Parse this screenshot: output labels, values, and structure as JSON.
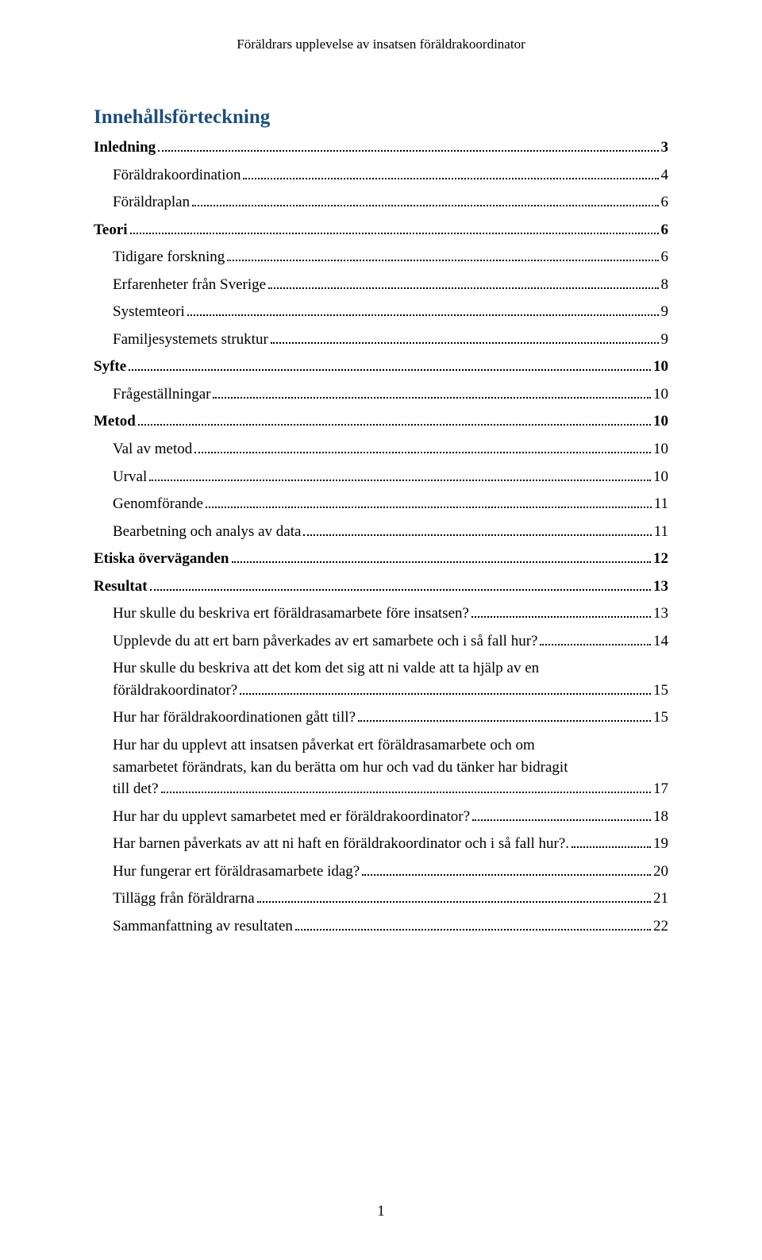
{
  "runningHeader": "Föräldrars upplevelse av insatsen föräldrakoordinator",
  "tocTitle": "Innehållsförteckning",
  "pageNumber": "1",
  "entries": [
    {
      "label": "Inledning",
      "page": "3",
      "bold": true,
      "indent": 0,
      "multiline": false
    },
    {
      "label": "Föräldrakoordination",
      "page": "4",
      "bold": false,
      "indent": 1,
      "multiline": false
    },
    {
      "label": "Föräldraplan",
      "page": "6",
      "bold": false,
      "indent": 1,
      "multiline": false
    },
    {
      "label": "Teori",
      "page": "6",
      "bold": true,
      "indent": 0,
      "multiline": false
    },
    {
      "label": "Tidigare forskning",
      "page": "6",
      "bold": false,
      "indent": 1,
      "multiline": false
    },
    {
      "label": "Erfarenheter från Sverige",
      "page": "8",
      "bold": false,
      "indent": 1,
      "multiline": false
    },
    {
      "label": "Systemteori",
      "page": "9",
      "bold": false,
      "indent": 1,
      "multiline": false
    },
    {
      "label": "Familjesystemets struktur",
      "page": "9",
      "bold": false,
      "indent": 1,
      "multiline": false
    },
    {
      "label": "Syfte",
      "page": "10",
      "bold": true,
      "indent": 0,
      "multiline": false
    },
    {
      "label": "Frågeställningar",
      "page": "10",
      "bold": false,
      "indent": 1,
      "multiline": false
    },
    {
      "label": "Metod",
      "page": "10",
      "bold": true,
      "indent": 0,
      "multiline": false
    },
    {
      "label": "Val av metod",
      "page": "10",
      "bold": false,
      "indent": 1,
      "multiline": false
    },
    {
      "label": "Urval",
      "page": "10",
      "bold": false,
      "indent": 1,
      "multiline": false
    },
    {
      "label": "Genomförande",
      "page": "11",
      "bold": false,
      "indent": 1,
      "multiline": false
    },
    {
      "label": "Bearbetning och analys av data",
      "page": "11",
      "bold": false,
      "indent": 1,
      "multiline": false
    },
    {
      "label": "Etiska överväganden",
      "page": "12",
      "bold": true,
      "indent": 0,
      "multiline": false
    },
    {
      "label": "Resultat",
      "page": "13",
      "bold": true,
      "indent": 0,
      "multiline": false
    },
    {
      "label": "Hur skulle du beskriva ert föräldrasamarbete före insatsen?",
      "page": "13",
      "bold": false,
      "indent": 1,
      "multiline": false
    },
    {
      "label": "Upplevde du att ert barn påverkades av ert samarbete och i så fall hur?",
      "page": "14",
      "bold": false,
      "indent": 1,
      "multiline": false
    },
    {
      "lines": [
        "Hur skulle du beskriva att det kom det sig att ni valde att ta hjälp av en"
      ],
      "lastLine": "föräldrakoordinator?",
      "page": "15",
      "bold": false,
      "indent": 1,
      "multiline": true
    },
    {
      "label": "Hur har föräldrakoordinationen gått till?",
      "page": "15",
      "bold": false,
      "indent": 1,
      "multiline": false
    },
    {
      "lines": [
        "Hur har du upplevt att insatsen påverkat ert föräldrasamarbete och om",
        "samarbetet förändrats, kan du berätta om hur och vad du tänker har bidragit"
      ],
      "lastLine": "till det?",
      "page": "17",
      "bold": false,
      "indent": 1,
      "multiline": true
    },
    {
      "label": "Hur har du upplevt samarbetet med er föräldrakoordinator?",
      "page": "18",
      "bold": false,
      "indent": 1,
      "multiline": false
    },
    {
      "label": "Har barnen påverkats av att ni haft en föräldrakoordinator och i så fall hur?.",
      "page": "19",
      "bold": false,
      "indent": 1,
      "multiline": false
    },
    {
      "label": "Hur fungerar ert föräldrasamarbete idag?",
      "page": "20",
      "bold": false,
      "indent": 1,
      "multiline": false
    },
    {
      "label": "Tillägg från föräldrarna",
      "page": "21",
      "bold": false,
      "indent": 1,
      "multiline": false
    },
    {
      "label": "Sammanfattning av resultaten",
      "page": "22",
      "bold": false,
      "indent": 1,
      "multiline": false
    }
  ]
}
